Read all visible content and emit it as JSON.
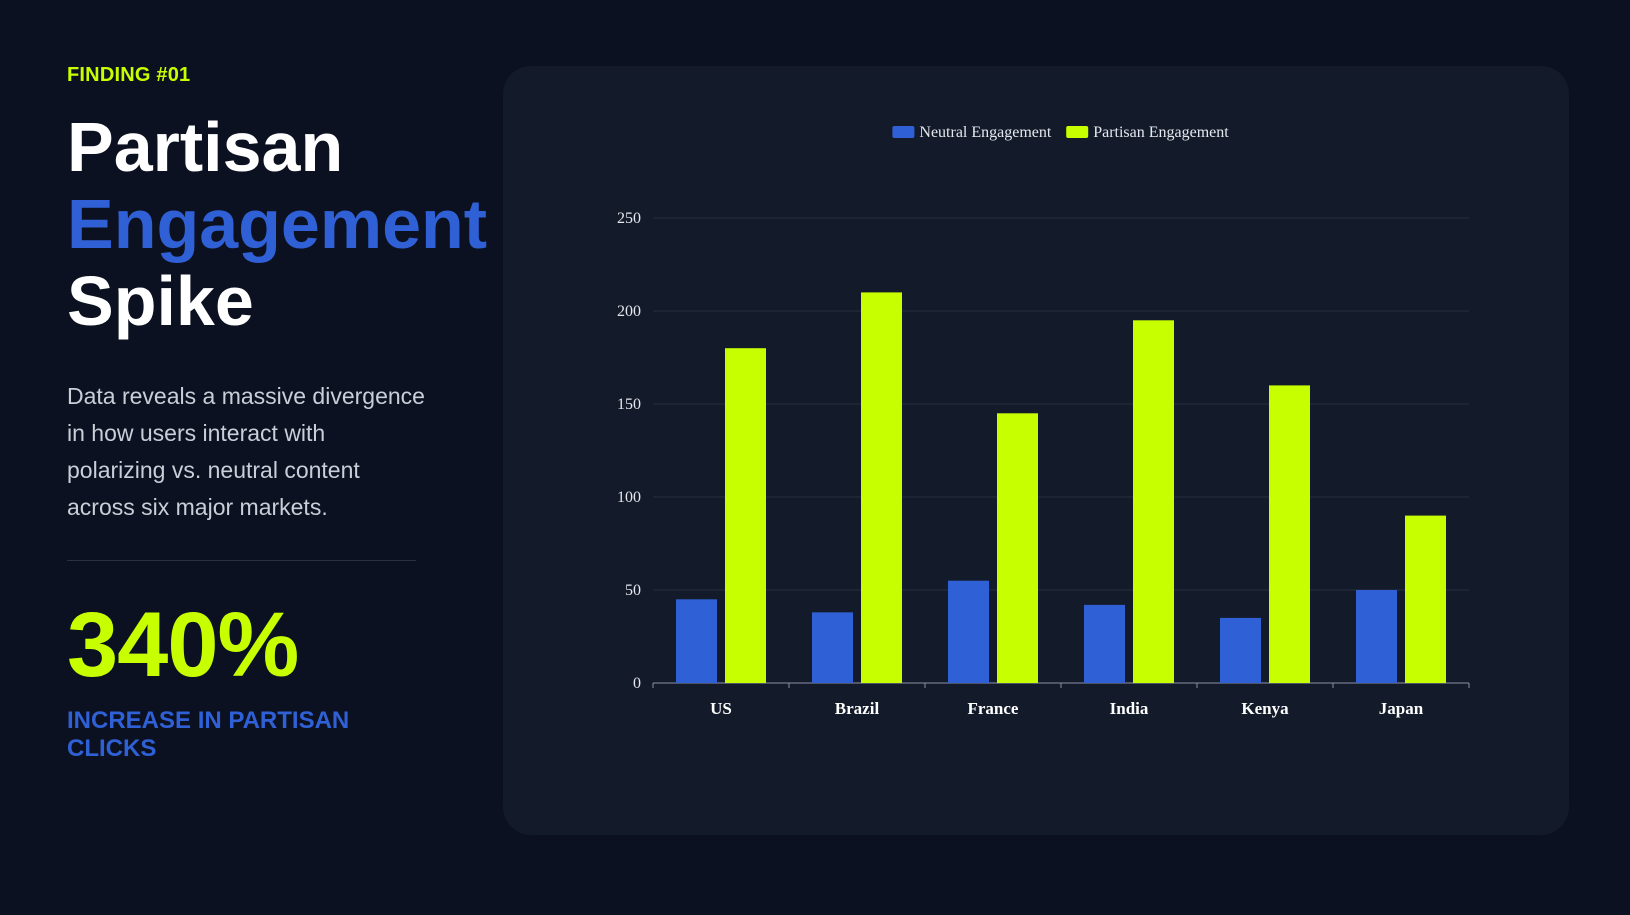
{
  "finding": {
    "tag": "FINDING #01"
  },
  "headline": {
    "line1": "Partisan",
    "line2": "Engagement",
    "line3": "Spike"
  },
  "description": "Data reveals a massive divergence in how users interact with polarizing vs. neutral content across six major markets.",
  "stat": {
    "value": "340%",
    "label": "INCREASE IN PARTISAN CLICKS"
  },
  "colors": {
    "neutral": "#3060d6",
    "partisan": "#c8ff00",
    "accent_green": "#c8ff00",
    "accent_blue": "#3060d6"
  },
  "chart_data": {
    "type": "bar",
    "categories": [
      "US",
      "Brazil",
      "France",
      "India",
      "Kenya",
      "Japan"
    ],
    "series": [
      {
        "name": "Neutral Engagement",
        "color": "#3060d6",
        "values": [
          45,
          38,
          55,
          42,
          35,
          50
        ]
      },
      {
        "name": "Partisan Engagement",
        "color": "#c8ff00",
        "values": [
          180,
          210,
          145,
          195,
          160,
          90
        ]
      }
    ],
    "ylim": [
      0,
      250
    ],
    "yticks": [
      0,
      50,
      100,
      150,
      200,
      250
    ],
    "grid": true,
    "legend": "top-center",
    "title": "",
    "xlabel": "",
    "ylabel": ""
  }
}
